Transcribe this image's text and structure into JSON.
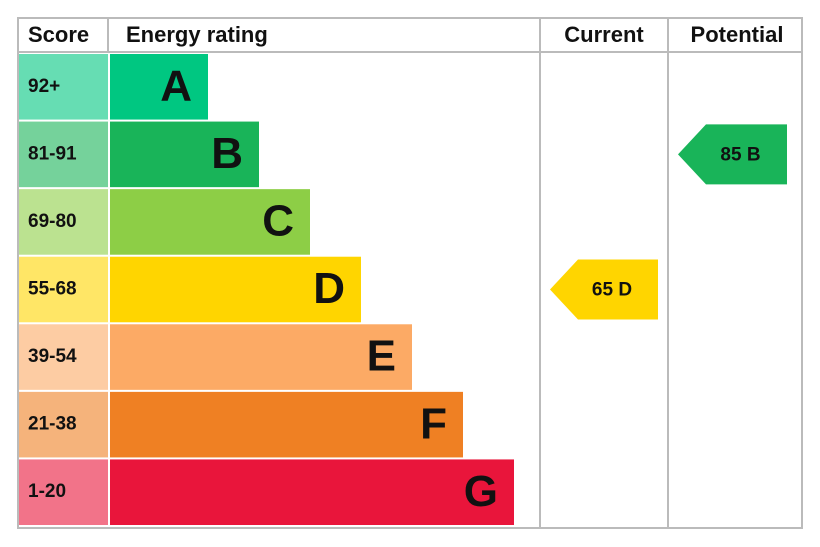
{
  "chart_data": {
    "type": "epc",
    "headers": [
      "Score",
      "Energy rating"
    ],
    "bands": [
      {
        "score": "92+",
        "letter": "A",
        "color": "#00c781"
      },
      {
        "score": "81-91",
        "letter": "B",
        "color": "#19b459"
      },
      {
        "score": "69-80",
        "letter": "C",
        "color": "#8dce46"
      },
      {
        "score": "55-68",
        "letter": "D",
        "color": "#ffd500"
      },
      {
        "score": "39-54",
        "letter": "E",
        "color": "#fcaa65"
      },
      {
        "score": "21-38",
        "letter": "F",
        "color": "#ef8023"
      },
      {
        "score": "1-20",
        "letter": "G",
        "color": "#e9153b"
      }
    ],
    "categories": [
      "Current",
      "Potential"
    ],
    "values": [
      65,
      85
    ],
    "value_labels": [
      "65 D",
      "85 B"
    ],
    "colors": [
      "#ffd500",
      "#19b459"
    ]
  }
}
